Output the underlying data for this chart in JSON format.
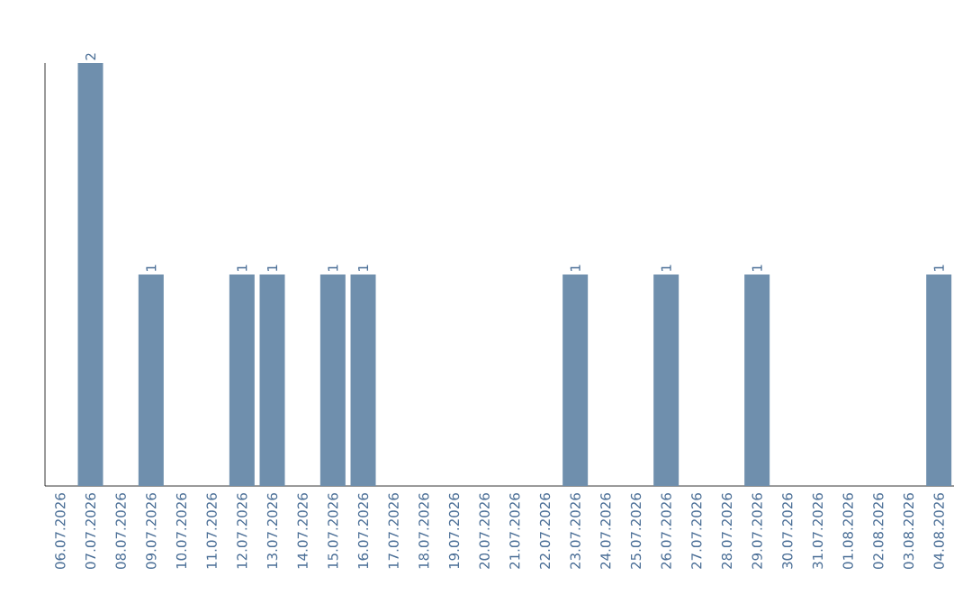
{
  "chart_data": {
    "type": "bar",
    "categories": [
      "06.07.2026",
      "07.07.2026",
      "08.07.2026",
      "09.07.2026",
      "10.07.2026",
      "11.07.2026",
      "12.07.2026",
      "13.07.2026",
      "14.07.2026",
      "15.07.2026",
      "16.07.2026",
      "17.07.2026",
      "18.07.2026",
      "19.07.2026",
      "20.07.2026",
      "21.07.2026",
      "22.07.2026",
      "23.07.2026",
      "24.07.2026",
      "25.07.2026",
      "26.07.2026",
      "27.07.2026",
      "28.07.2026",
      "29.07.2026",
      "30.07.2026",
      "31.07.2026",
      "01.08.2026",
      "02.08.2026",
      "03.08.2026",
      "04.08.2026"
    ],
    "values": [
      0,
      2,
      0,
      1,
      0,
      0,
      1,
      1,
      0,
      1,
      1,
      0,
      0,
      0,
      0,
      0,
      0,
      1,
      0,
      0,
      1,
      0,
      0,
      1,
      0,
      0,
      0,
      0,
      0,
      1
    ],
    "value_labels": [
      null,
      "2",
      null,
      "1",
      null,
      null,
      "1",
      "1",
      null,
      "1",
      "1",
      null,
      null,
      null,
      null,
      null,
      null,
      "1",
      null,
      null,
      "1",
      null,
      null,
      "1",
      null,
      null,
      null,
      null,
      null,
      "1"
    ],
    "color": "#6f8fad",
    "grid": false,
    "tick_labels": "x"
  }
}
